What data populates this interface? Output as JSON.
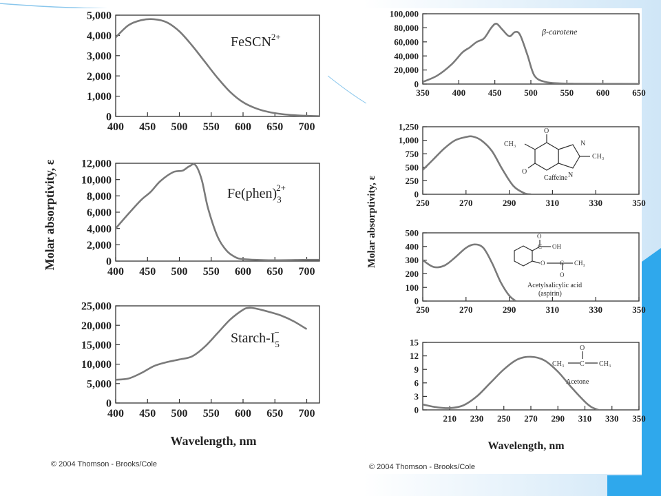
{
  "left_figure": {
    "ylabel": "Molar absorptivity, ε",
    "xlabel": "Wavelength, nm",
    "copyright": "© 2004 Thomson - Brooks/Cole"
  },
  "right_figure": {
    "ylabel": "Molar absorptivity, ε",
    "xlabel": "Wavelength, nm",
    "copyright": "© 2004 Thomson - Brooks/Cole"
  },
  "chart_data": [
    {
      "id": "fescn",
      "type": "line",
      "species_label": "FeSCN",
      "species_sup": "2+",
      "xlim": [
        400,
        720
      ],
      "ylim": [
        0,
        5000
      ],
      "xticks": [
        "400",
        "450",
        "500",
        "550",
        "600",
        "650",
        "700"
      ],
      "yticks": [
        "0",
        "1,000",
        "2,000",
        "3,000",
        "4,000",
        "5,000"
      ],
      "xtick_values": [
        400,
        450,
        500,
        550,
        600,
        650,
        700
      ],
      "ytick_values": [
        0,
        1000,
        2000,
        3000,
        4000,
        5000
      ],
      "series": [
        {
          "x": [
            400,
            420,
            440,
            460,
            480,
            500,
            520,
            540,
            560,
            580,
            600,
            620,
            640,
            660,
            680,
            700,
            720
          ],
          "y": [
            3900,
            4500,
            4750,
            4800,
            4650,
            4200,
            3500,
            2700,
            1900,
            1200,
            700,
            400,
            220,
            120,
            60,
            30,
            10
          ]
        }
      ]
    },
    {
      "id": "fephen",
      "type": "line",
      "species_label": "Fe(phen)",
      "species_sup": "2+",
      "species_sub": "3",
      "xlim": [
        400,
        720
      ],
      "ylim": [
        0,
        12000
      ],
      "xticks": [
        "400",
        "450",
        "500",
        "550",
        "600",
        "650",
        "700"
      ],
      "yticks": [
        "0",
        "2,000",
        "4,000",
        "6,000",
        "8,000",
        "10,000",
        "12,000"
      ],
      "xtick_values": [
        400,
        450,
        500,
        550,
        600,
        650,
        700
      ],
      "ytick_values": [
        0,
        2000,
        4000,
        6000,
        8000,
        10000,
        12000
      ],
      "series": [
        {
          "x": [
            400,
            420,
            440,
            455,
            470,
            490,
            505,
            515,
            525,
            535,
            545,
            560,
            575,
            590,
            600,
            620,
            650,
            700,
            720
          ],
          "y": [
            4000,
            5800,
            7500,
            8500,
            9800,
            10900,
            11100,
            11600,
            11800,
            10000,
            6500,
            3000,
            1200,
            400,
            250,
            150,
            100,
            150,
            150
          ]
        }
      ]
    },
    {
      "id": "starch",
      "type": "line",
      "species_label": "Starch-I",
      "species_sup": "−",
      "species_sub": "5",
      "xlim": [
        400,
        720
      ],
      "ylim": [
        0,
        25000
      ],
      "xticks": [
        "400",
        "450",
        "500",
        "550",
        "600",
        "650",
        "700"
      ],
      "yticks": [
        "0",
        "5,000",
        "10,000",
        "15,000",
        "20,000",
        "25,000"
      ],
      "xtick_values": [
        400,
        450,
        500,
        550,
        600,
        650,
        700
      ],
      "ytick_values": [
        0,
        5000,
        10000,
        15000,
        20000,
        25000
      ],
      "series": [
        {
          "x": [
            400,
            420,
            440,
            460,
            480,
            500,
            520,
            540,
            560,
            580,
            600,
            610,
            620,
            640,
            660,
            680,
            700
          ],
          "y": [
            6000,
            6300,
            7700,
            9500,
            10500,
            11200,
            12000,
            14500,
            18000,
            21500,
            24000,
            24500,
            24300,
            23500,
            22500,
            21000,
            19000
          ]
        }
      ]
    },
    {
      "id": "carotene",
      "type": "line",
      "species_label": "β-carotene",
      "xlim": [
        350,
        650
      ],
      "ylim": [
        0,
        100000
      ],
      "xticks": [
        "350",
        "400",
        "450",
        "500",
        "550",
        "600",
        "650"
      ],
      "yticks": [
        "0",
        "20,000",
        "40,000",
        "60,000",
        "80,000",
        "100,000"
      ],
      "xtick_values": [
        350,
        400,
        450,
        500,
        550,
        600,
        650
      ],
      "ytick_values": [
        0,
        20000,
        40000,
        60000,
        80000,
        100000
      ],
      "series": [
        {
          "x": [
            350,
            370,
            390,
            405,
            415,
            425,
            435,
            445,
            452,
            460,
            470,
            478,
            485,
            495,
            505,
            520,
            540,
            560,
            600,
            650
          ],
          "y": [
            3000,
            12000,
            28000,
            45000,
            52000,
            60000,
            65000,
            80000,
            86000,
            78000,
            68000,
            74000,
            70000,
            42000,
            12000,
            3000,
            1000,
            500,
            300,
            200
          ]
        }
      ]
    },
    {
      "id": "caffeine",
      "type": "line",
      "species_label": "Caffeine",
      "xlim": [
        250,
        350
      ],
      "ylim": [
        0,
        1250
      ],
      "xticks": [
        "250",
        "270",
        "290",
        "310",
        "330",
        "350"
      ],
      "yticks": [
        "0",
        "250",
        "500",
        "750",
        "1,000",
        "1,250"
      ],
      "xtick_values": [
        250,
        270,
        290,
        310,
        330,
        350
      ],
      "ytick_values": [
        0,
        250,
        500,
        750,
        1000,
        1250
      ],
      "series": [
        {
          "x": [
            250,
            255,
            260,
            265,
            270,
            273,
            277,
            282,
            287,
            292,
            297,
            300
          ],
          "y": [
            450,
            650,
            850,
            1000,
            1060,
            1070,
            1000,
            800,
            450,
            150,
            20,
            0
          ]
        }
      ]
    },
    {
      "id": "aspirin",
      "type": "line",
      "species_label": "Acetylsalicylic acid",
      "species_label2": "(aspirin)",
      "xlim": [
        250,
        350
      ],
      "ylim": [
        0,
        500
      ],
      "xticks": [
        "250",
        "270",
        "290",
        "310",
        "330",
        "350"
      ],
      "yticks": [
        "0",
        "100",
        "200",
        "300",
        "400",
        "500"
      ],
      "xtick_values": [
        250,
        270,
        290,
        310,
        330,
        350
      ],
      "ytick_values": [
        0,
        100,
        200,
        300,
        400,
        500
      ],
      "series": [
        {
          "x": [
            250,
            255,
            260,
            265,
            270,
            274,
            278,
            282,
            286,
            290,
            293
          ],
          "y": [
            300,
            250,
            260,
            320,
            390,
            415,
            390,
            280,
            140,
            40,
            0
          ]
        }
      ]
    },
    {
      "id": "acetone",
      "type": "line",
      "species_label": "Acetone",
      "xlim": [
        190,
        350
      ],
      "ylim": [
        0,
        15
      ],
      "xticks": [
        "210",
        "230",
        "250",
        "270",
        "290",
        "310",
        "330",
        "350"
      ],
      "yticks": [
        "0",
        "3",
        "6",
        "9",
        "12",
        "15"
      ],
      "xtick_values": [
        210,
        230,
        250,
        270,
        290,
        310,
        330,
        350
      ],
      "ytick_values": [
        0,
        3,
        6,
        9,
        12,
        15
      ],
      "series": [
        {
          "x": [
            190,
            200,
            210,
            220,
            230,
            240,
            250,
            260,
            270,
            280,
            290,
            300,
            310,
            315,
            320
          ],
          "y": [
            1.2,
            0.6,
            0.4,
            1.0,
            3.0,
            6.0,
            9.0,
            11.2,
            11.8,
            11.0,
            8.5,
            5.0,
            1.8,
            0.6,
            0
          ]
        }
      ]
    }
  ]
}
